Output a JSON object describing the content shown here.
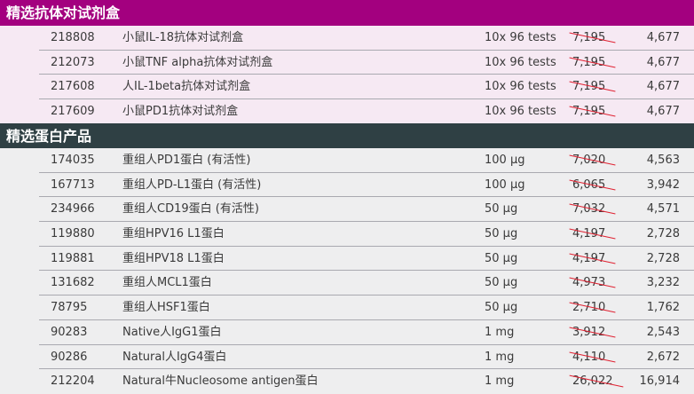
{
  "sections": [
    {
      "title": "精选抗体对试剂盒",
      "color": "#a3007f",
      "rows": [
        {
          "code": "218808",
          "name": "小鼠IL-18抗体对试剂盒",
          "qty": "10x 96 tests",
          "old": "7,195",
          "price": "4,677"
        },
        {
          "code": "212073",
          "name": "小鼠TNF alpha抗体对试剂盒",
          "qty": "10x 96 tests",
          "old": "7,195",
          "price": "4,677"
        },
        {
          "code": "217608",
          "name": "人IL-1beta抗体对试剂盒",
          "qty": "10x 96 tests",
          "old": "7,195",
          "price": "4,677"
        },
        {
          "code": "217609",
          "name": "小鼠PD1抗体对试剂盒",
          "qty": "10x 96 tests",
          "old": "7,195",
          "price": "4,677"
        }
      ]
    },
    {
      "title": "精选蛋白产品",
      "color": "#2f4044",
      "rows": [
        {
          "code": "174035",
          "name": "重组人PD1蛋白 (有活性)",
          "qty": "100 µg",
          "old": "7,020",
          "price": "4,563"
        },
        {
          "code": "167713",
          "name": "重组人PD-L1蛋白 (有活性)",
          "qty": "100 µg",
          "old": "6,065",
          "price": "3,942"
        },
        {
          "code": "234966",
          "name": "重组人CD19蛋白 (有活性)",
          "qty": "50 µg",
          "old": "7,032",
          "price": "4,571"
        },
        {
          "code": "119880",
          "name": "重组HPV16 L1蛋白",
          "qty": "50 µg",
          "old": "4,197",
          "price": "2,728"
        },
        {
          "code": "119881",
          "name": "重组HPV18 L1蛋白",
          "qty": "50 µg",
          "old": "4,197",
          "price": "2,728"
        },
        {
          "code": "131682",
          "name": "重组人MCL1蛋白",
          "qty": "50 µg",
          "old": "4,973",
          "price": "3,232"
        },
        {
          "code": "78795",
          "name": "重组人HSF1蛋白",
          "qty": "50 µg",
          "old": "2,710",
          "price": "1,762"
        },
        {
          "code": "90283",
          "name": "Native人IgG1蛋白",
          "qty": "1 mg",
          "old": "3,912",
          "price": "2,543"
        },
        {
          "code": "90286",
          "name": "Natural人IgG4蛋白",
          "qty": "1 mg",
          "old": "4,110",
          "price": "2,672"
        },
        {
          "code": "212204",
          "name": "Natural牛Nucleosome antigen蛋白",
          "qty": "1 mg",
          "old": "26,022",
          "price": "16,914"
        }
      ]
    }
  ]
}
